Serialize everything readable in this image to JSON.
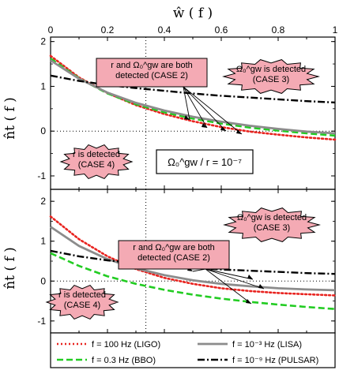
{
  "chart_data": [
    {
      "type": "line",
      "panel": "top",
      "xlabel": "ŵ ( f )",
      "ylabel": "n̂t ( f )",
      "xlim": [
        0,
        1
      ],
      "ylim": [
        -1.3,
        2.1
      ],
      "xticks": [
        "0",
        "0.2",
        "0.4",
        "0.6",
        "0.8",
        "1"
      ],
      "yticks": [
        "-1",
        "0",
        "1",
        "2"
      ],
      "annotation": "Ω₀^gw / r = 10⁻⁷",
      "series": [
        {
          "name": "f = 100 Hz (LIGO)",
          "color": "#e8231f",
          "style": "dotted",
          "x": [
            0,
            0.1,
            0.2,
            0.3,
            0.4,
            0.5,
            0.6,
            0.7,
            0.8,
            0.9,
            1.0
          ],
          "values": [
            1.68,
            1.2,
            0.85,
            0.58,
            0.38,
            0.22,
            0.09,
            -0.01,
            -0.08,
            -0.14,
            -0.19
          ]
        },
        {
          "name": "f = 0.3 Hz (BBO)",
          "color": "#22cc22",
          "style": "dashed",
          "x": [
            0,
            0.1,
            0.2,
            0.3,
            0.4,
            0.5,
            0.6,
            0.7,
            0.8,
            0.9,
            1.0
          ],
          "values": [
            1.62,
            1.18,
            0.84,
            0.6,
            0.42,
            0.28,
            0.17,
            0.08,
            0.01,
            -0.05,
            -0.1
          ]
        },
        {
          "name": "f = 10⁻³ Hz (LISA)",
          "color": "#8c8c8c",
          "style": "solid",
          "x": [
            0,
            0.1,
            0.2,
            0.3,
            0.4,
            0.5,
            0.6,
            0.7,
            0.8,
            0.9,
            1.0
          ],
          "values": [
            1.58,
            1.17,
            0.86,
            0.63,
            0.46,
            0.32,
            0.21,
            0.12,
            0.05,
            -0.01,
            -0.05
          ]
        },
        {
          "name": "f = 10⁻⁹ Hz (PULSAR)",
          "color": "#000000",
          "style": "dashdot",
          "x": [
            0,
            0.1,
            0.2,
            0.3,
            0.4,
            0.5,
            0.6,
            0.7,
            0.8,
            0.9,
            1.0
          ],
          "values": [
            1.24,
            1.12,
            1.03,
            0.96,
            0.9,
            0.84,
            0.79,
            0.75,
            0.71,
            0.67,
            0.64
          ]
        }
      ],
      "callouts": [
        {
          "lines": [
            "r and Ω₀^gw are both",
            "detected (CASE 2)"
          ]
        },
        {
          "lines": [
            "Ω₀^gw is detected",
            "(CASE 3)"
          ]
        },
        {
          "lines": [
            "r is detected",
            "(CASE 4)"
          ]
        }
      ]
    },
    {
      "type": "line",
      "panel": "bottom",
      "xlabel": "",
      "ylabel": "n̂t ( f )",
      "xlim": [
        0,
        1
      ],
      "ylim": [
        -1.3,
        2.3
      ],
      "yticks": [
        "-1",
        "0",
        "1",
        "2"
      ],
      "series": [
        {
          "name": "f = 100 Hz (LIGO)",
          "color": "#e8231f",
          "style": "dotted",
          "x": [
            0,
            0.1,
            0.2,
            0.3,
            0.4,
            0.5,
            0.6,
            0.7,
            0.8,
            0.9,
            1.0
          ],
          "values": [
            1.62,
            1.05,
            0.62,
            0.3,
            0.08,
            -0.07,
            -0.18,
            -0.25,
            -0.3,
            -0.33,
            -0.36
          ]
        },
        {
          "name": "f = 0.3 Hz (BBO)",
          "color": "#22cc22",
          "style": "dashed",
          "x": [
            0,
            0.1,
            0.2,
            0.3,
            0.4,
            0.5,
            0.6,
            0.7,
            0.8,
            0.9,
            1.0
          ],
          "values": [
            0.7,
            0.38,
            0.12,
            -0.07,
            -0.22,
            -0.34,
            -0.44,
            -0.52,
            -0.59,
            -0.65,
            -0.7
          ]
        },
        {
          "name": "f = 10⁻³ Hz (LISA)",
          "color": "#8c8c8c",
          "style": "solid",
          "x": [
            0,
            0.1,
            0.2,
            0.3,
            0.4,
            0.5,
            0.6,
            0.7,
            0.8,
            0.9,
            1.0
          ],
          "values": [
            1.36,
            0.88,
            0.55,
            0.32,
            0.15,
            0.02,
            -0.07,
            -0.13,
            -0.18,
            -0.21,
            -0.23
          ]
        },
        {
          "name": "f = 10⁻⁹ Hz (PULSAR)",
          "color": "#000000",
          "style": "dashdot",
          "x": [
            0,
            0.1,
            0.2,
            0.3,
            0.4,
            0.5,
            0.6,
            0.7,
            0.8,
            0.9,
            1.0
          ],
          "values": [
            0.76,
            0.62,
            0.52,
            0.45,
            0.38,
            0.33,
            0.29,
            0.26,
            0.23,
            0.2,
            0.18
          ]
        }
      ],
      "callouts": [
        {
          "lines": [
            "r and Ω₀^gw are both",
            "detected (CASE 2)"
          ]
        },
        {
          "lines": [
            "Ω₀^gw is detected",
            "(CASE 3)"
          ]
        },
        {
          "lines": [
            "r is detected",
            "(CASE 4)"
          ]
        }
      ]
    }
  ],
  "legend": [
    {
      "label": "f = 100 Hz (LIGO)",
      "style": "dotted",
      "color": "#e8231f"
    },
    {
      "label": "f = 10⁻³ Hz (LISA)",
      "style": "solid",
      "color": "#8c8c8c"
    },
    {
      "label": "f = 0.3 Hz (BBO)",
      "style": "dashed",
      "color": "#22cc22"
    },
    {
      "label": "f = 10⁻⁹ Hz (PULSAR)",
      "style": "dashdot",
      "color": "#000000"
    }
  ],
  "colors": {
    "callout_fill": "#f4aab4",
    "frame": "#000000"
  }
}
